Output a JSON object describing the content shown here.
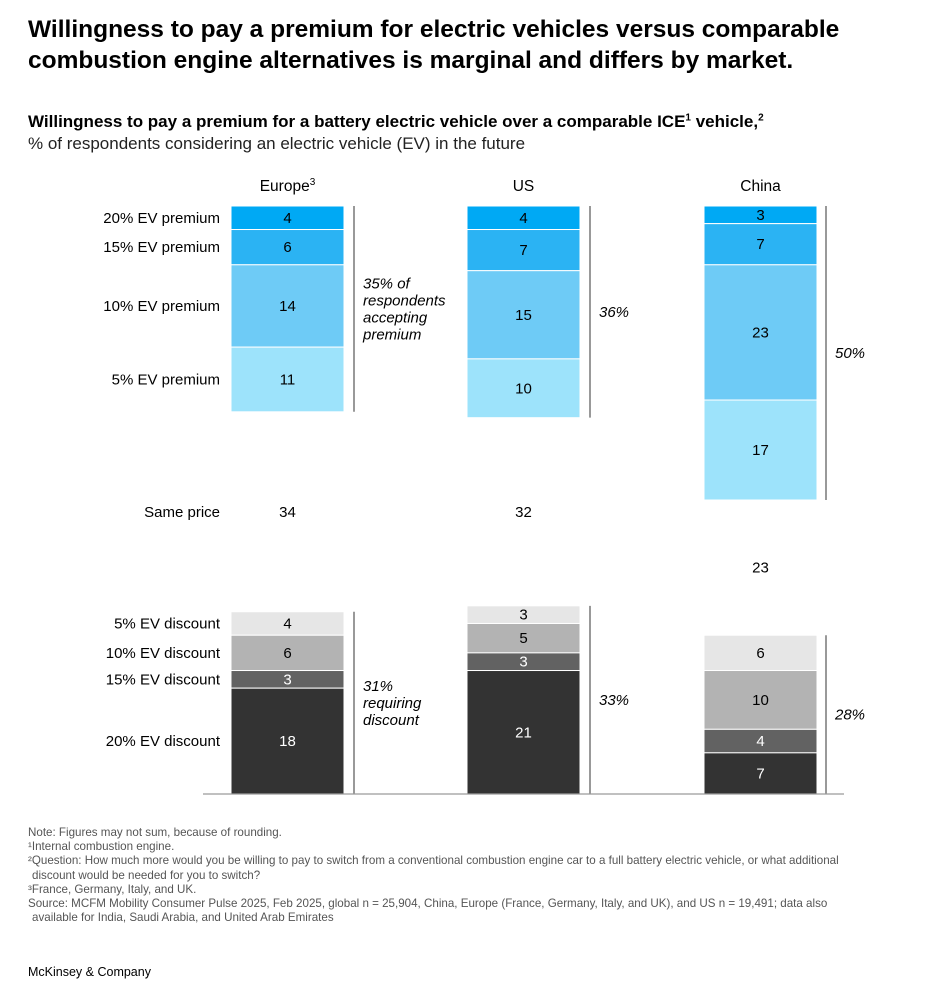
{
  "headline": "Willingness to pay a premium for electric vehicles versus comparable combustion engine alternatives is marginal and differs by market.",
  "subtitle": {
    "main": "Willingness to pay a premium for a battery electric vehicle over a comparable ICE",
    "sup1": "1",
    "middle": " vehicle,",
    "sup2": "2",
    "sub": "% of respondents considering an electric vehicle (EV) in the future"
  },
  "chart_data": {
    "type": "bar",
    "stacked": true,
    "categories": [
      "20% EV premium",
      "15% EV premium",
      "10% EV premium",
      "5% EV premium",
      "Same price",
      "5% EV discount",
      "10% EV discount",
      "15% EV discount",
      "20% EV discount"
    ],
    "columns": [
      {
        "name": "Europe",
        "sup": "3",
        "values": [
          4,
          6,
          14,
          11,
          34,
          4,
          6,
          3,
          18
        ],
        "premium_label": [
          "35% of",
          "respondents",
          "accepting",
          "premium"
        ],
        "discount_label": [
          "31%",
          "requiring",
          "discount"
        ]
      },
      {
        "name": "US",
        "sup": "",
        "values": [
          4,
          7,
          15,
          10,
          32,
          3,
          5,
          3,
          21
        ],
        "premium_label": [
          "36%"
        ],
        "discount_label": [
          "33%"
        ]
      },
      {
        "name": "China",
        "sup": "",
        "values": [
          3,
          7,
          23,
          17,
          23,
          6,
          10,
          4,
          7
        ],
        "premium_label": [
          "50%"
        ],
        "discount_label": [
          "28%"
        ]
      }
    ],
    "colors": [
      "#00a9f4",
      "#2bb3f3",
      "#6ecbf6",
      "#9de3fb",
      "#ffffff",
      "#e6e6e6",
      "#b3b3b3",
      "#626262",
      "#333333"
    ],
    "text_colors": [
      "#000000",
      "#000000",
      "#000000",
      "#000000",
      "#000000",
      "#000000",
      "#000000",
      "#ffffff",
      "#ffffff"
    ]
  },
  "notes": [
    "Note: Figures may not sum, because of rounding.",
    "¹Internal combustion engine.",
    "²Question: How much more would you be willing to pay to switch from a conventional combustion engine car to a full battery electric vehicle, or what additional",
    "discount would be needed for you to switch?",
    "³France, Germany, Italy, and UK.",
    "Source: MCFM Mobility Consumer Pulse 2025, Feb 2025, global n = 25,904, China, Europe (France, Germany, Italy, and UK), and US n = 19,491; data also",
    "available for India, Saudi Arabia, and United Arab Emirates"
  ],
  "brand": "McKinsey & Company"
}
